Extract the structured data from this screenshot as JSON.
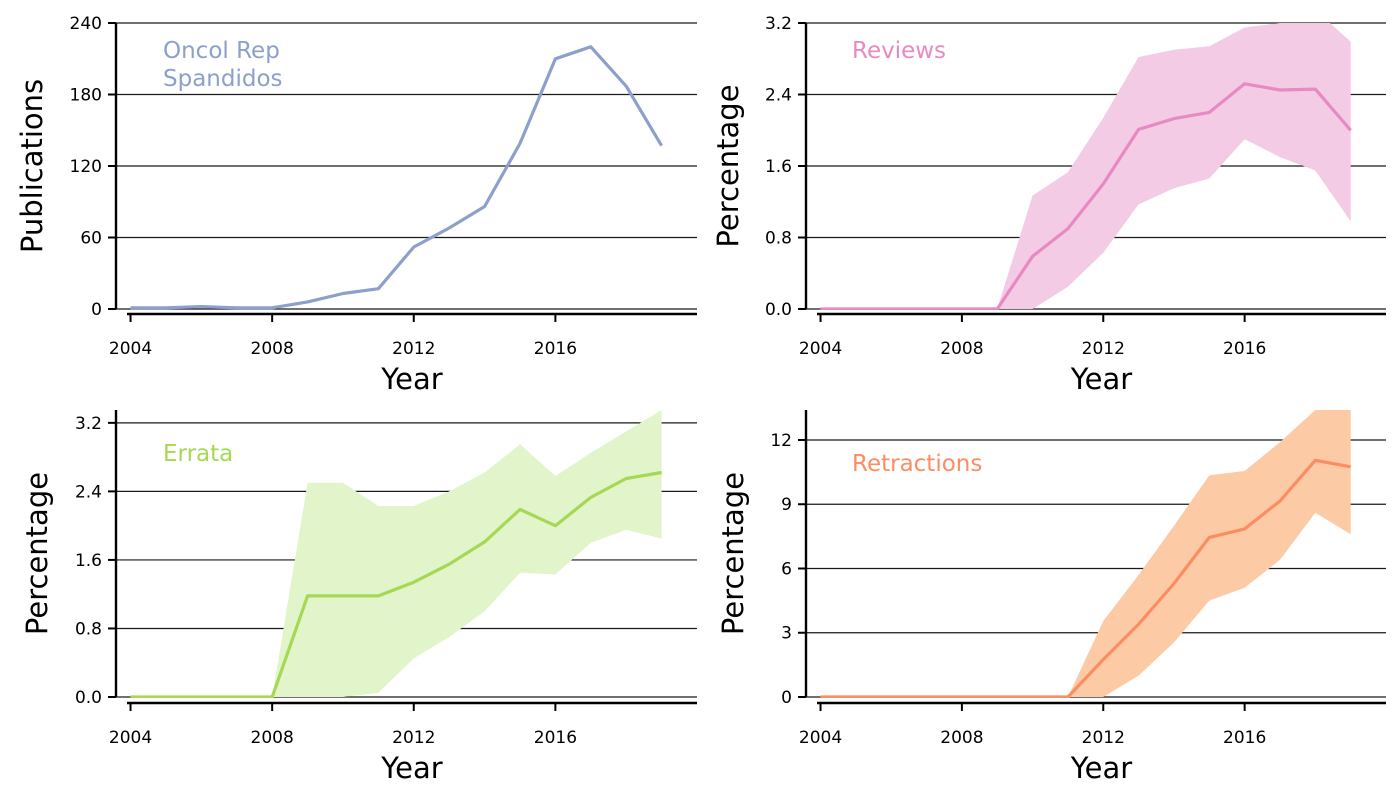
{
  "chart_data": [
    {
      "type": "line",
      "panel": "top-left",
      "color": "#8da0cb",
      "band_color": null,
      "labels": [
        "Oncol Rep",
        "Spandidos"
      ],
      "xlabel": "Year",
      "ylabel": "Publications",
      "xlim": [
        2003.9,
        2020.0
      ],
      "ylim": [
        0,
        240
      ],
      "xticks": [
        2004,
        2008,
        2012,
        2016
      ],
      "xtick_labels": [
        "2004",
        "2008",
        "2012",
        "2016"
      ],
      "yticks": [
        0,
        60,
        120,
        180,
        240
      ],
      "ytick_labels": [
        "0",
        "60",
        "120",
        "180",
        "240"
      ],
      "grid": "horizontal",
      "x": [
        2004,
        2005,
        2006,
        2007,
        2008,
        2009,
        2010,
        2011,
        2012,
        2013,
        2014,
        2015,
        2016,
        2017,
        2018,
        2019
      ],
      "y": [
        1,
        1,
        2,
        1,
        1,
        6,
        13,
        17,
        52,
        68,
        86,
        139,
        210,
        220,
        187,
        137
      ]
    },
    {
      "type": "line",
      "panel": "top-right",
      "color": "#e78ac3",
      "band_color": "#f4cbe4",
      "labels": [
        "Reviews"
      ],
      "xlabel": "Year",
      "ylabel": "Percentage",
      "xlim": [
        2003.9,
        2020.0
      ],
      "ylim": [
        0,
        3.2
      ],
      "xticks": [
        2004,
        2008,
        2012,
        2016
      ],
      "xtick_labels": [
        "2004",
        "2008",
        "2012",
        "2016"
      ],
      "yticks": [
        0,
        0.8,
        1.6,
        2.4,
        3.2
      ],
      "ytick_labels": [
        "0.0",
        "0.8",
        "1.6",
        "2.4",
        "3.2"
      ],
      "grid": "horizontal",
      "x": [
        2004,
        2005,
        2006,
        2007,
        2008,
        2009,
        2010,
        2011,
        2012,
        2013,
        2014,
        2015,
        2016,
        2017,
        2018,
        2019
      ],
      "y": [
        0,
        0,
        0,
        0,
        0,
        0,
        0.59,
        0.9,
        1.4,
        2.01,
        2.13,
        2.2,
        2.52,
        2.45,
        2.46,
        2.0
      ],
      "lower": [
        0,
        0,
        0,
        0,
        0,
        0,
        0,
        0.25,
        0.63,
        1.17,
        1.35,
        1.46,
        1.9,
        1.7,
        1.55,
        0.98
      ],
      "upper": [
        0,
        0,
        0,
        0,
        0,
        0,
        1.27,
        1.53,
        2.14,
        2.82,
        2.9,
        2.94,
        3.15,
        3.2,
        3.35,
        2.99
      ]
    },
    {
      "type": "line",
      "panel": "bottom-left",
      "color": "#a6d854",
      "band_color": "#e2f4c9",
      "labels": [
        "Errata"
      ],
      "xlabel": "Year",
      "ylabel": "Percentage",
      "xlim": [
        2003.9,
        2020.0
      ],
      "ylim": [
        0,
        3.35
      ],
      "xticks": [
        2004,
        2008,
        2012,
        2016
      ],
      "xtick_labels": [
        "2004",
        "2008",
        "2012",
        "2016"
      ],
      "yticks": [
        0,
        0.8,
        1.6,
        2.4,
        3.2
      ],
      "ytick_labels": [
        "0.0",
        "0.8",
        "1.6",
        "2.4",
        "3.2"
      ],
      "grid": "horizontal",
      "x": [
        2004,
        2005,
        2006,
        2007,
        2008,
        2009,
        2010,
        2011,
        2012,
        2013,
        2014,
        2015,
        2016,
        2017,
        2018,
        2019
      ],
      "y": [
        0,
        0,
        0,
        0,
        0,
        1.18,
        1.18,
        1.18,
        1.34,
        1.55,
        1.81,
        2.19,
        2.0,
        2.33,
        2.55,
        2.62
      ],
      "lower": [
        0,
        0,
        0,
        0,
        0,
        0,
        0,
        0.05,
        0.45,
        0.7,
        1.0,
        1.45,
        1.43,
        1.8,
        1.95,
        1.85
      ],
      "upper": [
        0,
        0,
        0,
        0,
        0,
        2.5,
        2.5,
        2.23,
        2.23,
        2.4,
        2.62,
        2.95,
        2.58,
        2.85,
        3.1,
        3.35
      ]
    },
    {
      "type": "line",
      "panel": "bottom-right",
      "color": "#fc8d62",
      "band_color": "#fdcaa6",
      "labels": [
        "Retractions"
      ],
      "xlabel": "Year",
      "ylabel": "Percentage",
      "xlim": [
        2003.9,
        2020.0
      ],
      "ylim": [
        0,
        13.4
      ],
      "xticks": [
        2004,
        2008,
        2012,
        2016
      ],
      "xtick_labels": [
        "2004",
        "2008",
        "2012",
        "2016"
      ],
      "yticks": [
        0,
        3,
        6,
        9,
        12
      ],
      "ytick_labels": [
        "0",
        "3",
        "6",
        "9",
        "12"
      ],
      "grid": "horizontal",
      "x": [
        2004,
        2005,
        2006,
        2007,
        2008,
        2009,
        2010,
        2011,
        2012,
        2013,
        2014,
        2015,
        2016,
        2017,
        2018,
        2019
      ],
      "y": [
        0,
        0,
        0,
        0,
        0,
        0,
        0,
        0,
        1.75,
        3.4,
        5.3,
        7.45,
        7.85,
        9.15,
        11.05,
        10.75
      ],
      "lower": [
        0,
        0,
        0,
        0,
        0,
        0,
        0,
        0,
        0,
        1.0,
        2.55,
        4.5,
        5.1,
        6.4,
        8.6,
        7.6
      ],
      "upper": [
        0,
        0,
        0,
        0,
        0,
        0,
        0,
        0,
        3.55,
        5.7,
        8.0,
        10.35,
        10.55,
        11.9,
        13.4,
        13.4
      ]
    }
  ]
}
